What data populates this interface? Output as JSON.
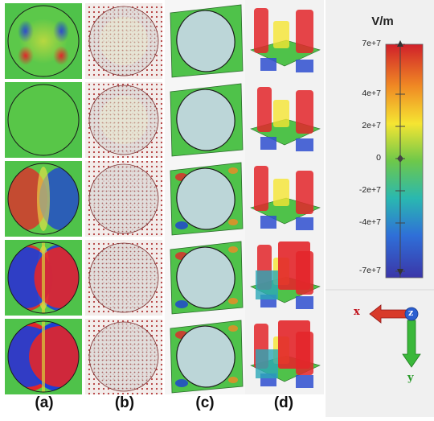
{
  "panel_labels": [
    "(a)",
    "(b)",
    "(c)",
    "(d)"
  ],
  "colorbar": {
    "unit": "V/m",
    "ticks": [
      "7e+7",
      "4e+7",
      "2e+7",
      "0",
      "-2e+7",
      "-4e+7",
      "-7e+7"
    ],
    "colors": [
      "#d0202a",
      "#f08a24",
      "#f5e532",
      "#6ec84a",
      "#2ab8b0",
      "#2f6fd8",
      "#3b36a8"
    ]
  },
  "axes": {
    "x_label": "x",
    "y_label": "y",
    "z_label": "z",
    "x_color": "#c0101a",
    "y_color": "#2a9a2a"
  },
  "rows": 5
}
